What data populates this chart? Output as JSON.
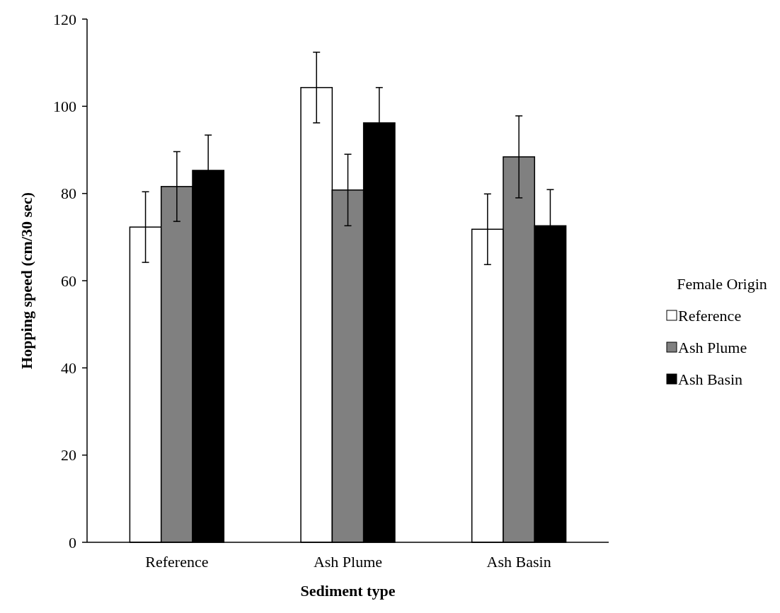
{
  "chart_data": {
    "type": "bar",
    "xlabel": "Sediment type",
    "ylabel": "Hopping speed (cm/30 sec)",
    "legend_title": "Female Origin",
    "categories": [
      "Reference",
      "Ash Plume",
      "Ash Basin"
    ],
    "series": [
      {
        "name": "Reference",
        "color": "#ffffff",
        "values": [
          72.3,
          104.3,
          71.8
        ],
        "errors": [
          8.1,
          8.1,
          8.1
        ]
      },
      {
        "name": "Ash Plume",
        "color": "#808080",
        "values": [
          81.6,
          80.8,
          88.4
        ],
        "errors": [
          8,
          8.2,
          9.4
        ]
      },
      {
        "name": "Ash Basin",
        "color": "#000000",
        "values": [
          85.3,
          96.2,
          72.6
        ],
        "errors": [
          8.1,
          8.1,
          8.3
        ]
      }
    ],
    "ylim": [
      0,
      120
    ],
    "yticks": [
      0,
      20,
      40,
      60,
      80,
      100,
      120
    ],
    "legend": "right"
  }
}
